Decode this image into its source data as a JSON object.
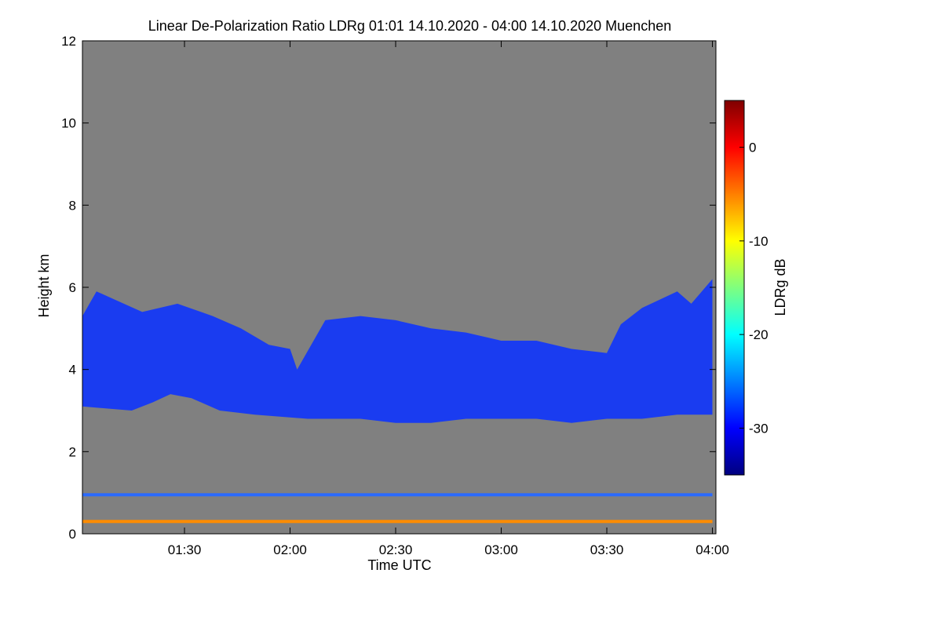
{
  "chart_data": {
    "type": "heatmap",
    "title": "Linear De-Polarization Ratio LDRg   01:01 14.10.2020 - 04:00 14.10.2020 Muenchen",
    "xlabel": "Time UTC",
    "ylabel": "Height km",
    "xlim": [
      "01:01",
      "04:01"
    ],
    "ylim": [
      0,
      12
    ],
    "x_ticks": [
      {
        "value": "01:30",
        "label": "01:30"
      },
      {
        "value": "02:00",
        "label": "02:00"
      },
      {
        "value": "02:30",
        "label": "02:30"
      },
      {
        "value": "03:00",
        "label": "03:00"
      },
      {
        "value": "03:30",
        "label": "03:30"
      },
      {
        "value": "04:00",
        "label": "04:00"
      }
    ],
    "y_ticks": [
      {
        "value": 0,
        "label": "0"
      },
      {
        "value": 2,
        "label": "2"
      },
      {
        "value": 4,
        "label": "4"
      },
      {
        "value": 6,
        "label": "6"
      },
      {
        "value": 8,
        "label": "8"
      },
      {
        "value": 10,
        "label": "10"
      },
      {
        "value": 12,
        "label": "12"
      }
    ],
    "no_data_color": "#808080",
    "colorbar": {
      "label": "LDRg dB",
      "range": [
        -35,
        5
      ],
      "ticks": [
        {
          "value": 0,
          "label": "0"
        },
        {
          "value": -10,
          "label": "-10"
        },
        {
          "value": -20,
          "label": "-20"
        },
        {
          "value": -30,
          "label": "-30"
        }
      ],
      "colormap": [
        "#00007f",
        "#0000ff",
        "#007fff",
        "#00ffff",
        "#7fff7f",
        "#ffff00",
        "#ff7f00",
        "#ff0000",
        "#7f0000"
      ]
    },
    "features": [
      {
        "name": "cloud-layer",
        "value_db": -31,
        "color": "#1a3cf0",
        "top_km": [
          [
            61,
            5.3
          ],
          [
            65,
            5.9
          ],
          [
            78,
            5.4
          ],
          [
            88,
            5.6
          ],
          [
            98,
            5.3
          ],
          [
            106,
            5.0
          ],
          [
            114,
            4.6
          ],
          [
            120,
            4.5
          ],
          [
            122,
            4.0
          ],
          [
            130,
            5.2
          ],
          [
            140,
            5.3
          ],
          [
            150,
            5.2
          ],
          [
            160,
            5.0
          ],
          [
            170,
            4.9
          ],
          [
            180,
            4.7
          ],
          [
            190,
            4.7
          ],
          [
            200,
            4.5
          ],
          [
            210,
            4.4
          ],
          [
            214,
            5.1
          ],
          [
            220,
            5.5
          ],
          [
            225,
            5.7
          ],
          [
            230,
            5.9
          ],
          [
            234,
            5.6
          ],
          [
            240,
            6.2
          ]
        ],
        "bottom_km": [
          [
            61,
            3.1
          ],
          [
            75,
            3.0
          ],
          [
            81,
            3.2
          ],
          [
            86,
            3.4
          ],
          [
            92,
            3.3
          ],
          [
            100,
            3.0
          ],
          [
            110,
            2.9
          ],
          [
            125,
            2.8
          ],
          [
            140,
            2.8
          ],
          [
            150,
            2.7
          ],
          [
            160,
            2.7
          ],
          [
            170,
            2.8
          ],
          [
            180,
            2.8
          ],
          [
            190,
            2.8
          ],
          [
            200,
            2.7
          ],
          [
            210,
            2.8
          ],
          [
            220,
            2.8
          ],
          [
            230,
            2.9
          ],
          [
            240,
            2.9
          ]
        ]
      },
      {
        "name": "thin-layer",
        "value_db": -26,
        "color": "#2a6aff",
        "height_km": 0.95,
        "from": "01:01",
        "to": "04:00"
      },
      {
        "name": "surface-layer",
        "value_db": -3,
        "color": "#ff8c00",
        "height_km": 0.3,
        "from": "01:01",
        "to": "04:00"
      }
    ]
  }
}
